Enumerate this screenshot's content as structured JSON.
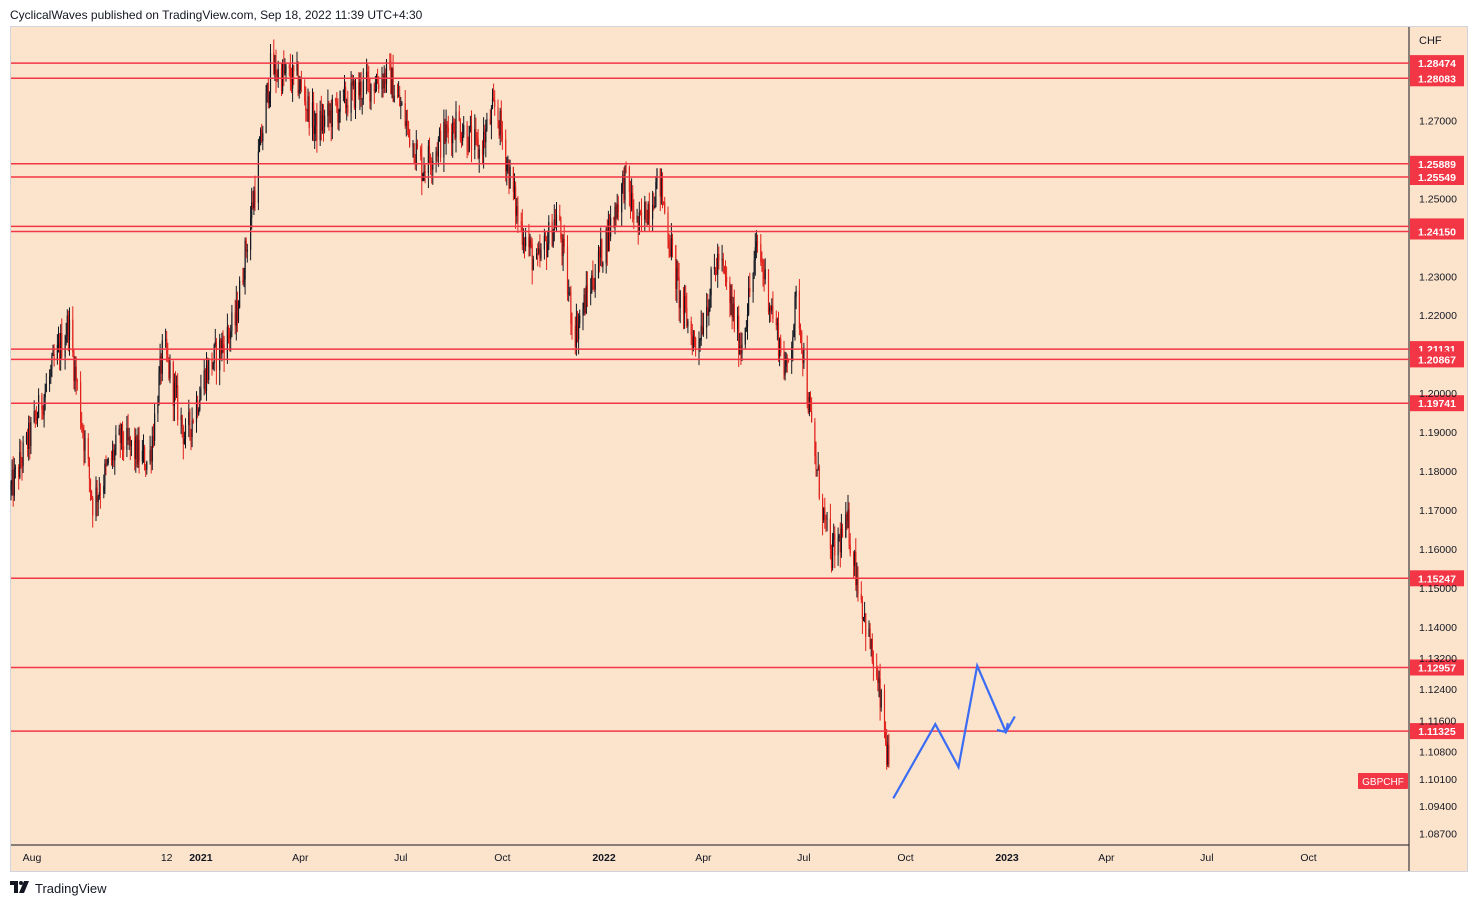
{
  "header": {
    "text": "CyclicalWaves published on TradingView.com, Sep 18, 2022 11:39 UTC+4:30"
  },
  "footer": {
    "logo_icon": "tradingview-logo-icon",
    "brand": "TradingView"
  },
  "colors": {
    "background": "#fce4cc",
    "level_line": "#f23645",
    "candle_up": "#131722",
    "candle_down": "#e0201b",
    "projection": "#3a6cf4",
    "symbol_badge": "#f23645"
  },
  "chart_data": {
    "type": "candlestick",
    "symbol": "GBPCHF",
    "currency_label": "CHF",
    "x_range": [
      "2020-07-13",
      "2023-12-31"
    ],
    "ylim": [
      1.084,
      1.294
    ],
    "x_ticks": [
      {
        "date": "2020-08-01",
        "label": "Aug"
      },
      {
        "date": "2020-12-01",
        "label": "12"
      },
      {
        "date": "2021-01-01",
        "label": "2021"
      },
      {
        "date": "2021-04-01",
        "label": "Apr"
      },
      {
        "date": "2021-07-01",
        "label": "Jul"
      },
      {
        "date": "2021-10-01",
        "label": "Oct"
      },
      {
        "date": "2022-01-01",
        "label": "2022"
      },
      {
        "date": "2022-04-01",
        "label": "Apr"
      },
      {
        "date": "2022-07-01",
        "label": "Jul"
      },
      {
        "date": "2022-10-01",
        "label": "Oct"
      },
      {
        "date": "2023-01-01",
        "label": "2023"
      },
      {
        "date": "2023-04-01",
        "label": "Apr"
      },
      {
        "date": "2023-07-01",
        "label": "Jul"
      },
      {
        "date": "2023-10-01",
        "label": "Oct"
      }
    ],
    "y_ticks": [
      "1.27000",
      "1.25000",
      "1.23000",
      "1.22000",
      "1.20000",
      "1.19000",
      "1.18000",
      "1.17000",
      "1.16000",
      "1.15000",
      "1.14000",
      "1.13200",
      "1.12400",
      "1.11600",
      "1.10800",
      "1.10100",
      "1.09400",
      "1.08700"
    ],
    "levels": [
      "1.28474",
      "1.28083",
      "1.25889",
      "1.25549",
      "1.24282",
      "1.24150",
      "1.21131",
      "1.20867",
      "1.19741",
      "1.15247",
      "1.12957",
      "1.11325"
    ],
    "price_path": [
      {
        "date": "2020-07-13",
        "close": 1.175
      },
      {
        "date": "2020-08-10",
        "close": 1.198
      },
      {
        "date": "2020-09-03",
        "close": 1.218
      },
      {
        "date": "2020-09-25",
        "close": 1.172
      },
      {
        "date": "2020-10-20",
        "close": 1.188
      },
      {
        "date": "2020-11-15",
        "close": 1.182
      },
      {
        "date": "2020-11-28",
        "close": 1.212
      },
      {
        "date": "2020-12-18",
        "close": 1.188
      },
      {
        "date": "2021-01-05",
        "close": 1.205
      },
      {
        "date": "2021-02-01",
        "close": 1.218
      },
      {
        "date": "2021-02-20",
        "close": 1.255
      },
      {
        "date": "2021-03-05",
        "close": 1.283
      },
      {
        "date": "2021-03-30",
        "close": 1.28
      },
      {
        "date": "2021-04-15",
        "close": 1.268
      },
      {
        "date": "2021-05-20",
        "close": 1.277
      },
      {
        "date": "2021-06-20",
        "close": 1.282
      },
      {
        "date": "2021-07-20",
        "close": 1.258
      },
      {
        "date": "2021-08-20",
        "close": 1.27
      },
      {
        "date": "2021-09-10",
        "close": 1.262
      },
      {
        "date": "2021-09-25",
        "close": 1.274
      },
      {
        "date": "2021-10-15",
        "close": 1.245
      },
      {
        "date": "2021-11-01",
        "close": 1.232
      },
      {
        "date": "2021-11-20",
        "close": 1.246
      },
      {
        "date": "2021-12-05",
        "close": 1.215
      },
      {
        "date": "2022-01-01",
        "close": 1.238
      },
      {
        "date": "2022-01-20",
        "close": 1.255
      },
      {
        "date": "2022-02-01",
        "close": 1.242
      },
      {
        "date": "2022-02-20",
        "close": 1.255
      },
      {
        "date": "2022-03-10",
        "close": 1.225
      },
      {
        "date": "2022-03-25",
        "close": 1.212
      },
      {
        "date": "2022-04-15",
        "close": 1.235
      },
      {
        "date": "2022-05-05",
        "close": 1.212
      },
      {
        "date": "2022-05-20",
        "close": 1.238
      },
      {
        "date": "2022-06-15",
        "close": 1.205
      },
      {
        "date": "2022-06-25",
        "close": 1.225
      },
      {
        "date": "2022-07-10",
        "close": 1.185
      },
      {
        "date": "2022-07-25",
        "close": 1.158
      },
      {
        "date": "2022-08-10",
        "close": 1.166
      },
      {
        "date": "2022-08-20",
        "close": 1.15
      },
      {
        "date": "2022-09-01",
        "close": 1.132
      },
      {
        "date": "2022-09-10",
        "close": 1.118
      },
      {
        "date": "2022-09-18",
        "close": 1.098
      }
    ],
    "projection_path": [
      {
        "date": "2022-09-20",
        "price": 1.096
      },
      {
        "date": "2022-10-28",
        "price": 1.115
      },
      {
        "date": "2022-11-18",
        "price": 1.104
      },
      {
        "date": "2022-12-05",
        "price": 1.13
      },
      {
        "date": "2022-12-31",
        "price": 1.113
      },
      {
        "date": "2023-01-08",
        "price": 1.117
      }
    ]
  }
}
